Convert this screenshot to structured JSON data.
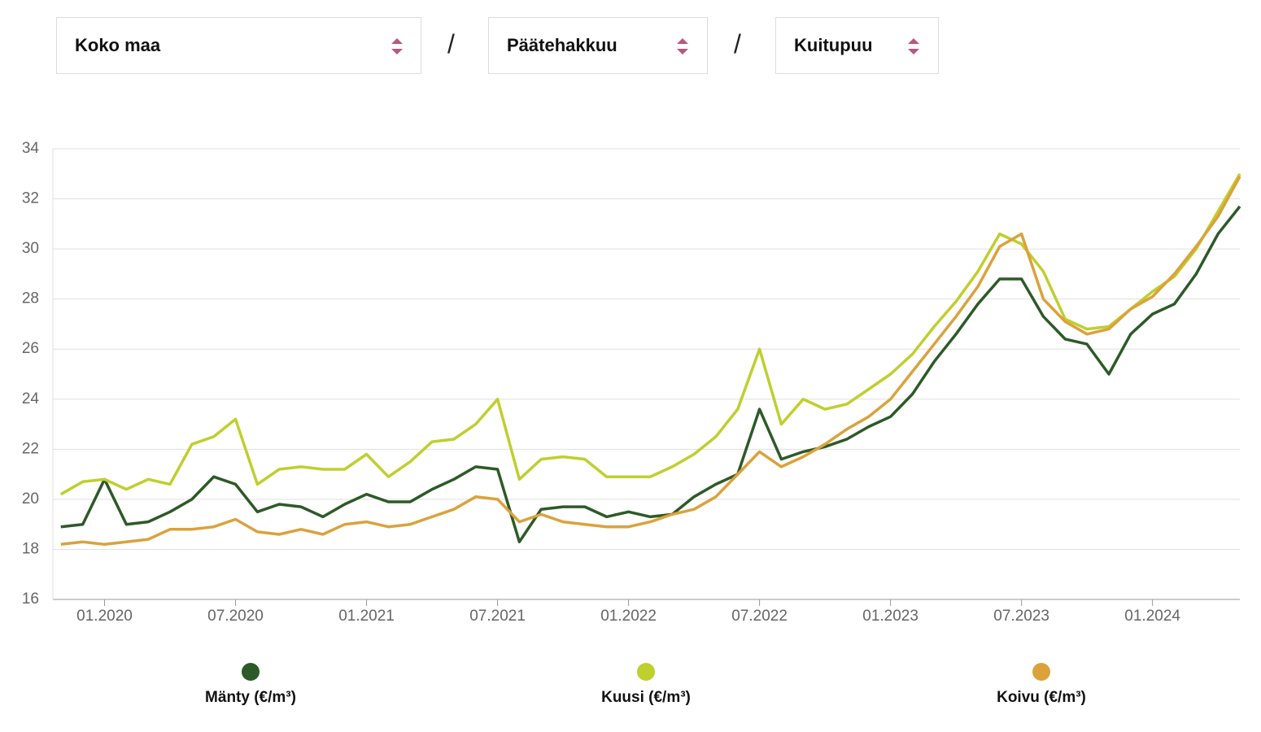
{
  "controls": {
    "selects": [
      "Koko maa",
      "Päätehakkuu",
      "Kuitupuu"
    ],
    "separators": [
      "/",
      "/"
    ]
  },
  "chart_data": {
    "type": "line",
    "x": [
      "11.2019",
      "12.2019",
      "01.2020",
      "02.2020",
      "03.2020",
      "04.2020",
      "05.2020",
      "06.2020",
      "07.2020",
      "08.2020",
      "09.2020",
      "10.2020",
      "11.2020",
      "12.2020",
      "01.2021",
      "02.2021",
      "03.2021",
      "04.2021",
      "05.2021",
      "06.2021",
      "07.2021",
      "08.2021",
      "09.2021",
      "10.2021",
      "11.2021",
      "12.2021",
      "01.2022",
      "02.2022",
      "03.2022",
      "04.2022",
      "05.2022",
      "06.2022",
      "07.2022",
      "08.2022",
      "09.2022",
      "10.2022",
      "11.2022",
      "12.2022",
      "01.2023",
      "02.2023",
      "03.2023",
      "04.2023",
      "05.2023",
      "06.2023",
      "07.2023",
      "08.2023",
      "09.2023",
      "10.2023",
      "11.2023",
      "12.2023",
      "01.2024",
      "02.2024",
      "03.2024",
      "04.2024",
      "05.2024"
    ],
    "series": [
      {
        "name": "Mänty (€/m³)",
        "color": "#2d5a27",
        "values": [
          18.9,
          19.0,
          20.8,
          19.0,
          19.1,
          19.5,
          20.0,
          20.9,
          20.6,
          19.5,
          19.8,
          19.7,
          19.3,
          19.8,
          20.2,
          19.9,
          19.9,
          20.4,
          20.8,
          21.3,
          21.2,
          18.3,
          19.6,
          19.7,
          19.7,
          19.3,
          19.5,
          19.3,
          19.4,
          20.1,
          20.6,
          21.0,
          23.6,
          21.6,
          21.9,
          22.1,
          22.4,
          22.9,
          23.3,
          24.2,
          25.5,
          26.6,
          27.8,
          28.8,
          28.8,
          27.3,
          26.4,
          26.2,
          25.0,
          26.6,
          27.4,
          27.8,
          29.0,
          30.6,
          31.7
        ]
      },
      {
        "name": "Kuusi (€/m³)",
        "color": "#bfcf2e",
        "values": [
          20.2,
          20.7,
          20.8,
          20.4,
          20.8,
          20.6,
          22.2,
          22.5,
          23.2,
          20.6,
          21.2,
          21.3,
          21.2,
          21.2,
          21.8,
          20.9,
          21.5,
          22.3,
          22.4,
          23.0,
          24.0,
          20.8,
          21.6,
          21.7,
          21.6,
          20.9,
          20.9,
          20.9,
          21.3,
          21.8,
          22.5,
          23.6,
          26.0,
          23.0,
          24.0,
          23.6,
          23.8,
          24.4,
          25.0,
          25.8,
          26.9,
          27.9,
          29.1,
          30.6,
          30.2,
          29.1,
          27.2,
          26.8,
          26.9,
          27.6,
          28.3,
          28.9,
          30.0,
          31.5,
          33.0
        ]
      },
      {
        "name": "Koivu (€/m³)",
        "color": "#dba23c",
        "values": [
          18.2,
          18.3,
          18.2,
          18.3,
          18.4,
          18.8,
          18.8,
          18.9,
          19.2,
          18.7,
          18.6,
          18.8,
          18.6,
          19.0,
          19.1,
          18.9,
          19.0,
          19.3,
          19.6,
          20.1,
          20.0,
          19.1,
          19.4,
          19.1,
          19.0,
          18.9,
          18.9,
          19.1,
          19.4,
          19.6,
          20.1,
          21.0,
          21.9,
          21.3,
          21.7,
          22.2,
          22.8,
          23.3,
          24.0,
          25.1,
          26.2,
          27.3,
          28.5,
          30.1,
          30.6,
          28.0,
          27.1,
          26.6,
          26.8,
          27.6,
          28.1,
          29.0,
          30.1,
          31.3,
          32.9
        ]
      }
    ],
    "xlim": [
      "10.2019",
      "05.2024"
    ],
    "xticks": [
      "01.2020",
      "07.2020",
      "01.2021",
      "07.2021",
      "01.2022",
      "07.2022",
      "01.2023",
      "07.2023",
      "01.2024"
    ],
    "ylim": [
      16,
      34
    ],
    "yticks": [
      16,
      18,
      20,
      22,
      24,
      26,
      28,
      30,
      32,
      34
    ],
    "grid": true
  }
}
